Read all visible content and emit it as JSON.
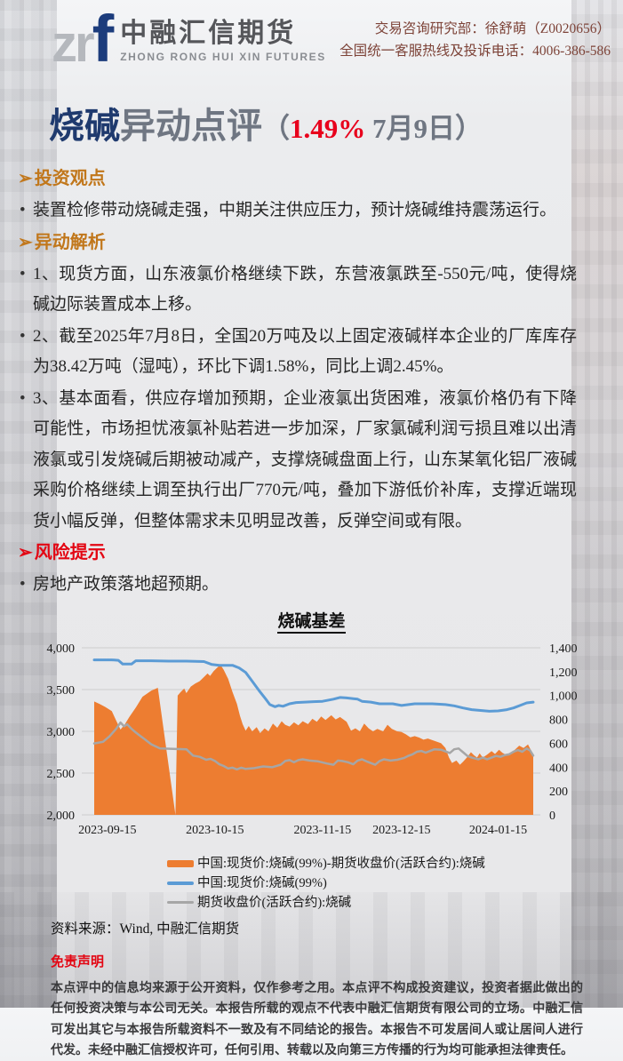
{
  "colors": {
    "accent_orange": "#C1771B",
    "risk_red": "#E30613",
    "title_navy": "#1F3A6E",
    "title_gray": "#6F7682",
    "highlight_red": "#E8001C",
    "contact_brown": "#7D4338",
    "logo_navy": "#1C3C7C",
    "logo_gray": "#B5B8BD",
    "brand_dark": "#55565A",
    "text_dark": "#262626",
    "series_orange": "#ED7D31",
    "series_blue": "#5B9BD5",
    "series_gray": "#A6A6A6"
  },
  "header": {
    "logo_zr": "zr",
    "logo_f": "f",
    "brand_cn": "中融汇信期货",
    "brand_en": "ZHONG RONG HUI XIN FUTURES",
    "contact_line1": "交易咨询研究部：徐舒萌（Z0020656）",
    "contact_line2": "全国统一客服热线及投诉电话：4006-386-586"
  },
  "title": {
    "product": "烧碱",
    "suffix": "异动点评",
    "paren_open": "（",
    "pct": "1.49%",
    "date": " 7月9日",
    "paren_close": "）"
  },
  "sections": {
    "investment": {
      "heading": "投资观点",
      "arrow": "➢",
      "bullets": [
        "装置检修带动烧碱走强，中期关注供应压力，预计烧碱维持震荡运行。"
      ]
    },
    "analysis": {
      "heading": "异动解析",
      "arrow": "➢",
      "bullets": [
        "1、现货方面，山东液氯价格继续下跌，东营液氯跌至-550元/吨，使得烧碱边际装置成本上移。",
        "2、截至2025年7月8日，全国20万吨及以上固定液碱样本企业的厂库库存为38.42万吨（湿吨），环比下调1.58%，同比上调2.45%。",
        "3、基本面看，供应存增加预期，企业液氯出货困难，液氯价格仍有下降可能性，市场担忧液氯补贴若进一步加深，厂家氯碱利润亏损且难以出清液氯或引发烧碱后期被动减产，支撑烧碱盘面上行，山东某氧化铝厂液碱采购价格继续上调至执行出厂770元/吨，叠加下游低价补库，支撑近端现货小幅反弹，但整体需求未见明显改善，反弹空间或有限。"
      ]
    },
    "risk": {
      "heading": "风险提示",
      "arrow": "➢",
      "bullets": [
        "房地产政策落地超预期。"
      ]
    }
  },
  "chart_data": {
    "type": "area",
    "title": "烧碱基差",
    "grid": true,
    "legend_position": "bottom",
    "left_axis": {
      "min": 2000,
      "max": 4000,
      "tick_values": [
        2000,
        2500,
        3000,
        3500,
        4000
      ],
      "tick_labels": [
        "2,000",
        "2,500",
        "3,000",
        "3,500",
        "4,000"
      ]
    },
    "right_axis": {
      "min": 0,
      "max": 1400,
      "tick_values": [
        0,
        200,
        400,
        600,
        800,
        1000,
        1200,
        1400
      ],
      "tick_labels": [
        "0",
        "200",
        "400",
        "600",
        "800",
        "1,000",
        "1,200",
        "1,400"
      ]
    },
    "x_ticks": [
      {
        "label": "2023-09-15",
        "t": 0.03
      },
      {
        "label": "2023-10-15",
        "t": 0.275
      },
      {
        "label": "2023-11-15",
        "t": 0.52
      },
      {
        "label": "2023-12-15",
        "t": 0.7
      },
      {
        "label": "2024-01-15",
        "t": 0.92
      }
    ],
    "series": [
      {
        "name": "中国:现货价:烧碱(99%)-期货收盘价(活跃合约):烧碱",
        "type": "area",
        "axis": "right",
        "color": "#ED7D31",
        "swatch_height": 8,
        "points": [
          [
            0,
            950
          ],
          [
            0.012,
            930
          ],
          [
            0.025,
            905
          ],
          [
            0.04,
            870
          ],
          [
            0.05,
            790
          ],
          [
            0.06,
            715
          ],
          [
            0.07,
            760
          ],
          [
            0.08,
            820
          ],
          [
            0.095,
            900
          ],
          [
            0.11,
            990
          ],
          [
            0.13,
            1040
          ],
          [
            0.145,
            1065
          ],
          [
            0.185,
            0
          ],
          [
            0.19,
            1000
          ],
          [
            0.197,
            1030
          ],
          [
            0.205,
            1060
          ],
          [
            0.21,
            1020
          ],
          [
            0.22,
            1075
          ],
          [
            0.23,
            1100
          ],
          [
            0.24,
            1120
          ],
          [
            0.25,
            1155
          ],
          [
            0.258,
            1185
          ],
          [
            0.264,
            1165
          ],
          [
            0.272,
            1205
          ],
          [
            0.282,
            1240
          ],
          [
            0.288,
            1255
          ],
          [
            0.295,
            1215
          ],
          [
            0.305,
            1140
          ],
          [
            0.315,
            1030
          ],
          [
            0.325,
            930
          ],
          [
            0.332,
            830
          ],
          [
            0.338,
            760
          ],
          [
            0.345,
            705
          ],
          [
            0.352,
            745
          ],
          [
            0.36,
            700
          ],
          [
            0.37,
            735
          ],
          [
            0.378,
            685
          ],
          [
            0.388,
            725
          ],
          [
            0.397,
            700
          ],
          [
            0.407,
            765
          ],
          [
            0.417,
            730
          ],
          [
            0.427,
            785
          ],
          [
            0.435,
            755
          ],
          [
            0.445,
            740
          ],
          [
            0.455,
            775
          ],
          [
            0.465,
            750
          ],
          [
            0.475,
            785
          ],
          [
            0.487,
            760
          ],
          [
            0.497,
            805
          ],
          [
            0.507,
            780
          ],
          [
            0.517,
            825
          ],
          [
            0.527,
            795
          ],
          [
            0.54,
            835
          ],
          [
            0.55,
            800
          ],
          [
            0.56,
            820
          ],
          [
            0.575,
            780
          ],
          [
            0.585,
            705
          ],
          [
            0.595,
            725
          ],
          [
            0.605,
            700
          ],
          [
            0.615,
            765
          ],
          [
            0.625,
            725
          ],
          [
            0.635,
            700
          ],
          [
            0.645,
            720
          ],
          [
            0.658,
            700
          ],
          [
            0.668,
            755
          ],
          [
            0.678,
            720
          ],
          [
            0.69,
            700
          ],
          [
            0.7,
            695
          ],
          [
            0.71,
            675
          ],
          [
            0.72,
            650
          ],
          [
            0.73,
            660
          ],
          [
            0.74,
            648
          ],
          [
            0.75,
            630
          ],
          [
            0.76,
            640
          ],
          [
            0.775,
            620
          ],
          [
            0.79,
            600
          ],
          [
            0.8,
            560
          ],
          [
            0.808,
            480
          ],
          [
            0.815,
            435
          ],
          [
            0.825,
            455
          ],
          [
            0.833,
            420
          ],
          [
            0.84,
            445
          ],
          [
            0.85,
            485
          ],
          [
            0.858,
            525
          ],
          [
            0.865,
            500
          ],
          [
            0.872,
            480
          ],
          [
            0.878,
            515
          ],
          [
            0.885,
            480
          ],
          [
            0.895,
            505
          ],
          [
            0.905,
            535
          ],
          [
            0.913,
            510
          ],
          [
            0.922,
            545
          ],
          [
            0.93,
            520
          ],
          [
            0.94,
            500
          ],
          [
            0.95,
            525
          ],
          [
            0.958,
            545
          ],
          [
            0.968,
            580
          ],
          [
            0.978,
            560
          ],
          [
            0.988,
            590
          ],
          [
            1,
            505
          ]
        ]
      },
      {
        "name": "中国:现货价:烧碱(99%)",
        "type": "line",
        "axis": "left",
        "color": "#5B9BD5",
        "width": 3,
        "swatch_height": 4,
        "points": [
          [
            0,
            3855
          ],
          [
            0.04,
            3855
          ],
          [
            0.055,
            3850
          ],
          [
            0.065,
            3805
          ],
          [
            0.085,
            3805
          ],
          [
            0.095,
            3845
          ],
          [
            0.13,
            3845
          ],
          [
            0.17,
            3840
          ],
          [
            0.21,
            3840
          ],
          [
            0.25,
            3835
          ],
          [
            0.268,
            3800
          ],
          [
            0.285,
            3790
          ],
          [
            0.315,
            3790
          ],
          [
            0.33,
            3760
          ],
          [
            0.345,
            3705
          ],
          [
            0.36,
            3600
          ],
          [
            0.375,
            3490
          ],
          [
            0.39,
            3390
          ],
          [
            0.4,
            3320
          ],
          [
            0.412,
            3295
          ],
          [
            0.42,
            3310
          ],
          [
            0.43,
            3300
          ],
          [
            0.445,
            3330
          ],
          [
            0.46,
            3345
          ],
          [
            0.48,
            3350
          ],
          [
            0.5,
            3355
          ],
          [
            0.52,
            3360
          ],
          [
            0.545,
            3385
          ],
          [
            0.56,
            3405
          ],
          [
            0.575,
            3400
          ],
          [
            0.59,
            3390
          ],
          [
            0.6,
            3385
          ],
          [
            0.61,
            3360
          ],
          [
            0.63,
            3350
          ],
          [
            0.65,
            3330
          ],
          [
            0.68,
            3330
          ],
          [
            0.7,
            3310
          ],
          [
            0.73,
            3330
          ],
          [
            0.77,
            3330
          ],
          [
            0.8,
            3320
          ],
          [
            0.82,
            3305
          ],
          [
            0.84,
            3280
          ],
          [
            0.86,
            3260
          ],
          [
            0.88,
            3250
          ],
          [
            0.9,
            3240
          ],
          [
            0.92,
            3245
          ],
          [
            0.94,
            3260
          ],
          [
            0.955,
            3280
          ],
          [
            0.97,
            3310
          ],
          [
            0.985,
            3340
          ],
          [
            1,
            3350
          ]
        ]
      },
      {
        "name": "期货收盘价(活跃合约):烧碱",
        "type": "line",
        "axis": "left",
        "color": "#A6A6A6",
        "width": 2.5,
        "swatch_height": 3,
        "points": [
          [
            0,
            2855
          ],
          [
            0.02,
            2875
          ],
          [
            0.035,
            2940
          ],
          [
            0.05,
            3030
          ],
          [
            0.06,
            3105
          ],
          [
            0.068,
            3060
          ],
          [
            0.075,
            3085
          ],
          [
            0.085,
            3030
          ],
          [
            0.095,
            2985
          ],
          [
            0.105,
            2945
          ],
          [
            0.115,
            2905
          ],
          [
            0.13,
            2845
          ],
          [
            0.15,
            2795
          ],
          [
            0.18,
            2790
          ],
          [
            0.21,
            2785
          ],
          [
            0.225,
            2710
          ],
          [
            0.24,
            2695
          ],
          [
            0.255,
            2660
          ],
          [
            0.265,
            2670
          ],
          [
            0.275,
            2645
          ],
          [
            0.285,
            2605
          ],
          [
            0.295,
            2585
          ],
          [
            0.305,
            2555
          ],
          [
            0.315,
            2565
          ],
          [
            0.325,
            2545
          ],
          [
            0.335,
            2565
          ],
          [
            0.345,
            2550
          ],
          [
            0.365,
            2560
          ],
          [
            0.385,
            2580
          ],
          [
            0.405,
            2570
          ],
          [
            0.425,
            2600
          ],
          [
            0.435,
            2645
          ],
          [
            0.445,
            2655
          ],
          [
            0.455,
            2630
          ],
          [
            0.465,
            2655
          ],
          [
            0.475,
            2665
          ],
          [
            0.49,
            2650
          ],
          [
            0.51,
            2640
          ],
          [
            0.53,
            2615
          ],
          [
            0.545,
            2600
          ],
          [
            0.555,
            2650
          ],
          [
            0.565,
            2645
          ],
          [
            0.578,
            2630
          ],
          [
            0.59,
            2605
          ],
          [
            0.6,
            2650
          ],
          [
            0.61,
            2665
          ],
          [
            0.62,
            2640
          ],
          [
            0.63,
            2620
          ],
          [
            0.64,
            2600
          ],
          [
            0.65,
            2645
          ],
          [
            0.66,
            2665
          ],
          [
            0.675,
            2650
          ],
          [
            0.69,
            2660
          ],
          [
            0.705,
            2680
          ],
          [
            0.715,
            2705
          ],
          [
            0.725,
            2725
          ],
          [
            0.735,
            2755
          ],
          [
            0.745,
            2765
          ],
          [
            0.755,
            2745
          ],
          [
            0.765,
            2765
          ],
          [
            0.775,
            2785
          ],
          [
            0.79,
            2780
          ],
          [
            0.8,
            2760
          ],
          [
            0.81,
            2740
          ],
          [
            0.82,
            2785
          ],
          [
            0.83,
            2795
          ],
          [
            0.84,
            2750
          ],
          [
            0.85,
            2705
          ],
          [
            0.86,
            2685
          ],
          [
            0.875,
            2665
          ],
          [
            0.885,
            2685
          ],
          [
            0.895,
            2665
          ],
          [
            0.905,
            2685
          ],
          [
            0.915,
            2705
          ],
          [
            0.925,
            2695
          ],
          [
            0.935,
            2715
          ],
          [
            0.945,
            2725
          ],
          [
            0.955,
            2755
          ],
          [
            0.965,
            2775
          ],
          [
            0.975,
            2755
          ],
          [
            0.985,
            2795
          ],
          [
            0.993,
            2770
          ],
          [
            1,
            2710
          ]
        ]
      }
    ]
  },
  "source": "资料来源：Wind, 中融汇信期货",
  "disclaimer": {
    "heading": "免责声明",
    "text": "本点评中的信息均来源于公开资料，仅作参考之用。本点评不构成投资建议，投资者据此做出的任何投资决策与本公司无关。本报告所载的观点不代表中融汇信期货有限公司的立场。中融汇信可发出其它与本报告所载资料不一致及有不同结论的报告。本报告不可发居间人或让居间人进行代发。未经中融汇信授权许可，任何引用、转载以及向第三方传播的行为均可能承担法律责任。"
  }
}
